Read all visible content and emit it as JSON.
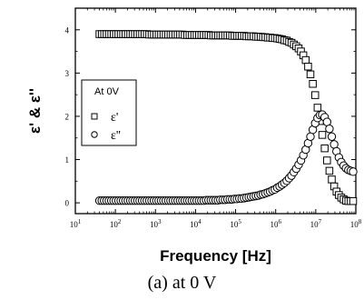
{
  "caption": "(a) at 0 V",
  "chart_data": {
    "type": "scatter",
    "title": "",
    "xlabel": "Frequency [Hz]",
    "ylabel": "ε' & ε''",
    "xscale": "log",
    "xlim": [
      10,
      100000000
    ],
    "ylim": [
      -0.25,
      4.5
    ],
    "x_ticks": [
      {
        "value": 10,
        "base": "10",
        "exp": "1"
      },
      {
        "value": 100,
        "base": "10",
        "exp": "2"
      },
      {
        "value": 1000,
        "base": "10",
        "exp": "3"
      },
      {
        "value": 10000,
        "base": "10",
        "exp": "4"
      },
      {
        "value": 100000,
        "base": "10",
        "exp": "5"
      },
      {
        "value": 1000000,
        "base": "10",
        "exp": "6"
      },
      {
        "value": 10000000,
        "base": "10",
        "exp": "7"
      },
      {
        "value": 100000000,
        "base": "10",
        "exp": "8"
      }
    ],
    "y_ticks": [
      "0",
      "1",
      "2",
      "3",
      "4"
    ],
    "grid": false,
    "legend": {
      "placement": "left",
      "title": "At 0V",
      "entries": [
        {
          "label": "ε'",
          "marker": "square"
        },
        {
          "label": "ε''",
          "marker": "circle"
        }
      ]
    },
    "series": [
      {
        "name": "ε'",
        "marker": "square",
        "x": [
          40,
          45.8,
          52.5,
          60.2,
          68.9,
          79,
          90.5,
          103.7,
          118.9,
          136.2,
          156.1,
          178.8,
          204.9,
          234.8,
          269.1,
          308.4,
          353.4,
          405,
          464.1,
          531.8,
          609.4,
          698.4,
          800.3,
          917.1,
          1051,
          1204,
          1380,
          1582,
          1812,
          2077,
          2380,
          2727,
          3125,
          3582,
          4104,
          4703,
          5390,
          6176,
          7078,
          8111,
          9295,
          10652,
          12206,
          13988,
          16030,
          18370,
          21051,
          24123,
          27644,
          31678,
          36302,
          41601,
          47673,
          54630,
          62604,
          71741,
          82212,
          94211,
          107961,
          123718,
          141775,
          162467,
          186180,
          213354,
          244493,
          280178,
          321071,
          367932,
          421633,
          483172,
          553692,
          634506,
          727113,
          833237,
          954851,
          1094215,
          1253920,
          1436934,
          1646660,
          1886996,
          2162411,
          2478023,
          2839700,
          3254165,
          3729123,
          4273404,
          4897126,
          5611880,
          6430956,
          7369576,
          8445190,
          9677796,
          11090301,
          12708967,
          14563884,
          16689532,
          19125430,
          21916856,
          25115706,
          28781441,
          32982207,
          37796077,
          43312547,
          49634174,
          56878455,
          65179998,
          74693168,
          85594802
        ],
        "y": [
          3.9,
          3.9,
          3.9,
          3.9,
          3.9,
          3.9,
          3.9,
          3.9,
          3.9,
          3.9,
          3.9,
          3.9,
          3.9,
          3.9,
          3.9,
          3.9,
          3.9,
          3.9,
          3.9,
          3.9,
          3.9,
          3.89,
          3.89,
          3.89,
          3.89,
          3.89,
          3.89,
          3.89,
          3.89,
          3.89,
          3.89,
          3.89,
          3.89,
          3.89,
          3.89,
          3.89,
          3.88,
          3.88,
          3.88,
          3.88,
          3.88,
          3.88,
          3.88,
          3.88,
          3.88,
          3.88,
          3.88,
          3.87,
          3.87,
          3.87,
          3.87,
          3.87,
          3.87,
          3.87,
          3.87,
          3.87,
          3.86,
          3.86,
          3.86,
          3.86,
          3.86,
          3.86,
          3.85,
          3.85,
          3.85,
          3.85,
          3.84,
          3.84,
          3.84,
          3.83,
          3.83,
          3.82,
          3.82,
          3.81,
          3.81,
          3.8,
          3.79,
          3.78,
          3.76,
          3.75,
          3.72,
          3.7,
          3.66,
          3.62,
          3.57,
          3.5,
          3.41,
          3.3,
          3.15,
          2.97,
          2.75,
          2.49,
          2.2,
          1.89,
          1.57,
          1.26,
          0.98,
          0.74,
          0.54,
          0.38,
          0.26,
          0.18,
          0.12,
          0.08,
          0.05,
          0.04,
          0.04,
          0.04
        ]
      },
      {
        "name": "ε''",
        "marker": "circle",
        "x": [
          40,
          45.8,
          52.5,
          60.2,
          68.9,
          79,
          90.5,
          103.7,
          118.9,
          136.2,
          156.1,
          178.8,
          204.9,
          234.8,
          269.1,
          308.4,
          353.4,
          405,
          464.1,
          531.8,
          609.4,
          698.4,
          800.3,
          917.1,
          1051,
          1204,
          1380,
          1582,
          1812,
          2077,
          2380,
          2727,
          3125,
          3582,
          4104,
          4703,
          5390,
          6176,
          7078,
          8111,
          9295,
          10652,
          12206,
          13988,
          16030,
          18370,
          21051,
          24123,
          27644,
          31678,
          36302,
          41601,
          47673,
          54630,
          62604,
          71741,
          82212,
          94211,
          107961,
          123718,
          141775,
          162467,
          186180,
          213354,
          244493,
          280178,
          321071,
          367932,
          421633,
          483172,
          553692,
          634506,
          727113,
          833237,
          954851,
          1094215,
          1253920,
          1436934,
          1646660,
          1886996,
          2162411,
          2478023,
          2839700,
          3254165,
          3729123,
          4273404,
          4897126,
          5611880,
          6430956,
          7369576,
          8445190,
          9677796,
          11090301,
          12708967,
          14563884,
          16689532,
          19125430,
          21916856,
          25115706,
          28781441,
          32982207,
          37796077,
          43312547,
          49634174,
          56878455,
          65179998,
          74693168,
          85594802
        ],
        "y": [
          0.05,
          0.05,
          0.05,
          0.05,
          0.05,
          0.05,
          0.05,
          0.05,
          0.05,
          0.05,
          0.05,
          0.05,
          0.05,
          0.05,
          0.05,
          0.05,
          0.05,
          0.05,
          0.05,
          0.05,
          0.05,
          0.05,
          0.05,
          0.05,
          0.05,
          0.05,
          0.05,
          0.05,
          0.05,
          0.05,
          0.05,
          0.05,
          0.05,
          0.05,
          0.05,
          0.05,
          0.05,
          0.05,
          0.05,
          0.05,
          0.05,
          0.05,
          0.05,
          0.05,
          0.05,
          0.06,
          0.06,
          0.06,
          0.06,
          0.06,
          0.06,
          0.07,
          0.07,
          0.07,
          0.08,
          0.08,
          0.08,
          0.09,
          0.09,
          0.1,
          0.1,
          0.11,
          0.12,
          0.13,
          0.14,
          0.15,
          0.16,
          0.17,
          0.19,
          0.2,
          0.22,
          0.24,
          0.26,
          0.29,
          0.31,
          0.35,
          0.38,
          0.42,
          0.46,
          0.51,
          0.57,
          0.63,
          0.71,
          0.79,
          0.88,
          0.98,
          1.1,
          1.23,
          1.38,
          1.53,
          1.69,
          1.84,
          1.96,
          2.03,
          2.04,
          1.98,
          1.87,
          1.71,
          1.53,
          1.35,
          1.19,
          1.05,
          0.94,
          0.86,
          0.8,
          0.76,
          0.74,
          0.72
        ]
      }
    ]
  }
}
